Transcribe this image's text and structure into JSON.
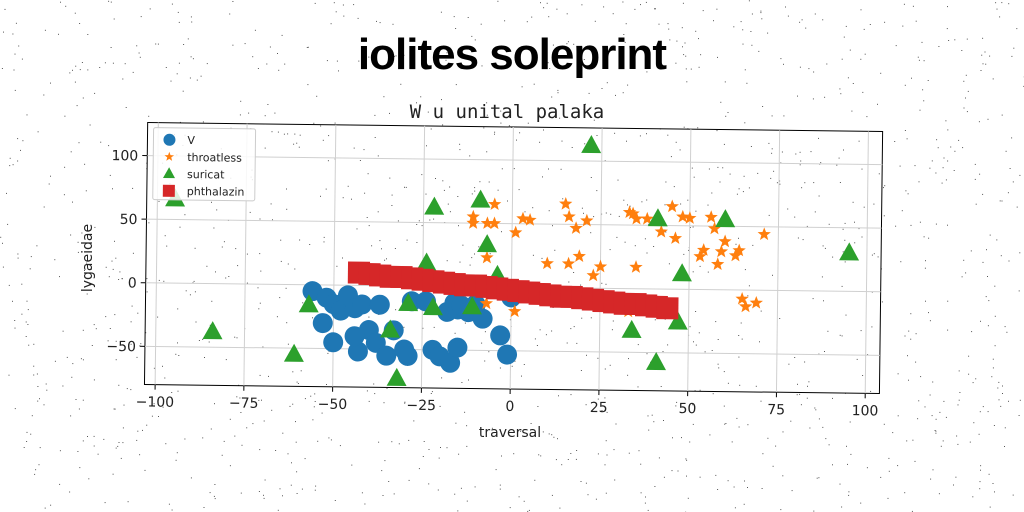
{
  "headline": "iolites soleprint",
  "chart_data": {
    "type": "scatter",
    "title": "W u unital palaka",
    "xlabel": "traversal",
    "ylabel": "lygaeidae",
    "xlim": [
      -103,
      104
    ],
    "ylim": [
      -80,
      126
    ],
    "xticks": [
      -100,
      -75,
      -50,
      -25,
      0,
      25,
      50,
      75,
      100
    ],
    "xtick_labels": [
      "−100",
      "−75",
      "−50",
      "−25",
      "0",
      "25",
      "50",
      "75",
      "100"
    ],
    "yticks": [
      -50,
      0,
      50,
      100
    ],
    "ytick_labels": [
      "−50",
      "0",
      "50",
      "100"
    ],
    "grid": true,
    "legend_position": "top-left",
    "series": [
      {
        "name": "V",
        "marker": "circle",
        "color": "#1f77b4",
        "points": [
          [
            -56,
            -5
          ],
          [
            -52,
            -10
          ],
          [
            -50,
            -15
          ],
          [
            -48,
            -20
          ],
          [
            -53,
            -30
          ],
          [
            -50,
            -45
          ],
          [
            -46,
            -8
          ],
          [
            -44,
            -18
          ],
          [
            -42,
            -15
          ],
          [
            -40,
            -35
          ],
          [
            -38,
            -45
          ],
          [
            -37,
            -15
          ],
          [
            -35,
            -55
          ],
          [
            -33,
            -35
          ],
          [
            -30,
            -50
          ],
          [
            -29,
            -55
          ],
          [
            -28,
            -12
          ],
          [
            -24,
            -12
          ],
          [
            -22,
            -50
          ],
          [
            -20,
            -55
          ],
          [
            -18,
            -20
          ],
          [
            -17,
            -60
          ],
          [
            -16,
            -13
          ],
          [
            -15,
            -18
          ],
          [
            -15,
            -48
          ],
          [
            -14,
            -15
          ],
          [
            -12,
            -20
          ],
          [
            -10,
            -14
          ],
          [
            -8,
            -25
          ],
          [
            -3,
            -38
          ],
          [
            -1,
            -53
          ],
          [
            0,
            -8
          ],
          [
            -43,
            -52
          ],
          [
            -44,
            -40
          ]
        ]
      },
      {
        "name": "throatless",
        "marker": "star",
        "color": "#ff7f0e",
        "points": [
          [
            -11,
            55
          ],
          [
            -11,
            50
          ],
          [
            -7,
            50
          ],
          [
            -5,
            65
          ],
          [
            -5,
            50
          ],
          [
            -7,
            23
          ],
          [
            1,
            43
          ],
          [
            3,
            54
          ],
          [
            5,
            53
          ],
          [
            10,
            19
          ],
          [
            15,
            66
          ],
          [
            16,
            56
          ],
          [
            16,
            19
          ],
          [
            18,
            47
          ],
          [
            19,
            25
          ],
          [
            21,
            53
          ],
          [
            23,
            10
          ],
          [
            25,
            17
          ],
          [
            33,
            60
          ],
          [
            34,
            59
          ],
          [
            35,
            55
          ],
          [
            35,
            17
          ],
          [
            38,
            55
          ],
          [
            42,
            45
          ],
          [
            45,
            65
          ],
          [
            46,
            40
          ],
          [
            48,
            57
          ],
          [
            50,
            56
          ],
          [
            53,
            26
          ],
          [
            54,
            31
          ],
          [
            56,
            57
          ],
          [
            57,
            48
          ],
          [
            58,
            20
          ],
          [
            59,
            30
          ],
          [
            60,
            38
          ],
          [
            63,
            27
          ],
          [
            64,
            31
          ],
          [
            65,
            -7
          ],
          [
            66,
            -13
          ],
          [
            69,
            -10
          ],
          [
            71,
            44
          ],
          [
            33,
            -18
          ],
          [
            1,
            -19
          ],
          [
            -7,
            -13
          ]
        ]
      },
      {
        "name": "suricat",
        "marker": "triangle",
        "color": "#2ca02c",
        "points": [
          [
            -95,
            66
          ],
          [
            -84,
            -38
          ],
          [
            -61,
            -55
          ],
          [
            -57,
            -16
          ],
          [
            -34,
            -35
          ],
          [
            -32,
            -73
          ],
          [
            -29,
            -14
          ],
          [
            -24,
            18
          ],
          [
            -22,
            -17
          ],
          [
            -22,
            62
          ],
          [
            -11,
            -16
          ],
          [
            -9,
            68
          ],
          [
            -7,
            33
          ],
          [
            -4,
            9
          ],
          [
            22,
            112
          ],
          [
            34,
            -33
          ],
          [
            41,
            -58
          ],
          [
            41,
            55
          ],
          [
            47,
            -26
          ],
          [
            48,
            12
          ],
          [
            60,
            55
          ],
          [
            95,
            30
          ]
        ]
      },
      {
        "name": "phthalazin",
        "marker": "square",
        "color": "#d62728",
        "points": [
          [
            -43,
            10
          ],
          [
            -40,
            9
          ],
          [
            -37,
            8
          ],
          [
            -34,
            7
          ],
          [
            -31,
            7
          ],
          [
            -28,
            6
          ],
          [
            -25,
            5
          ],
          [
            -22,
            4
          ],
          [
            -19,
            3
          ],
          [
            -16,
            2
          ],
          [
            -13,
            1
          ],
          [
            -10,
            1
          ],
          [
            -7,
            0
          ],
          [
            -4,
            -1
          ],
          [
            -1,
            -2
          ],
          [
            2,
            -3
          ],
          [
            5,
            -4
          ],
          [
            8,
            -5
          ],
          [
            11,
            -6
          ],
          [
            14,
            -7
          ],
          [
            17,
            -7
          ],
          [
            20,
            -8
          ],
          [
            23,
            -9
          ],
          [
            26,
            -10
          ],
          [
            29,
            -11
          ],
          [
            32,
            -12
          ],
          [
            35,
            -12
          ],
          [
            38,
            -13
          ],
          [
            41,
            -14
          ],
          [
            44,
            -15
          ]
        ]
      }
    ]
  }
}
